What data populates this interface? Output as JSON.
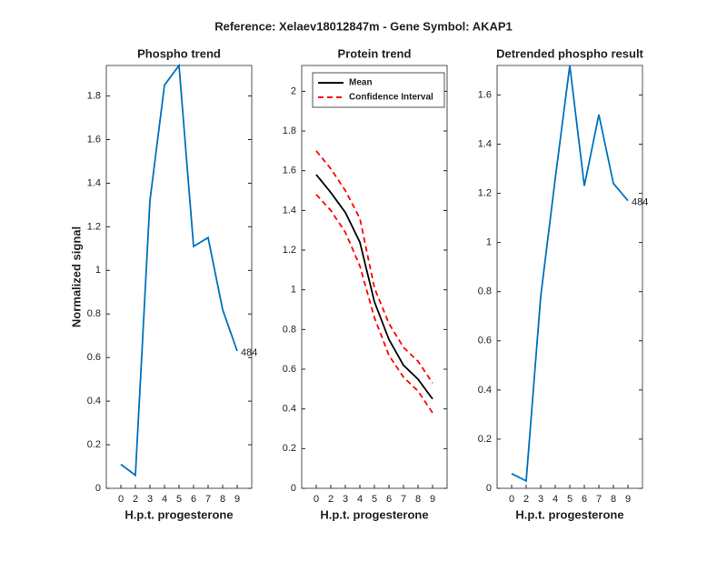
{
  "title": "Reference:  Xelaev18012847m - Gene Symbol:  AKAP1",
  "chart_data": [
    {
      "type": "line",
      "title": "Phospho trend",
      "x_label": "H.p.t. progesterone",
      "y_label": "Normalized signal",
      "categories": [
        "0",
        "2",
        "3",
        "4",
        "5",
        "6",
        "7",
        "8",
        "9"
      ],
      "series": [
        {
          "color": "#0072bd",
          "values": [
            0.11,
            0.06,
            1.32,
            1.85,
            1.94,
            1.11,
            1.15,
            0.82,
            0.63
          ]
        }
      ],
      "annotation": "484",
      "ylim": [
        0,
        1.94
      ],
      "yticks": [
        0,
        0.2,
        0.4,
        0.6,
        0.8,
        1,
        1.2,
        1.4,
        1.6,
        1.8
      ]
    },
    {
      "type": "line",
      "title": "Protein trend",
      "x_label": "H.p.t. progesterone",
      "categories": [
        "0",
        "2",
        "3",
        "4",
        "5",
        "6",
        "7",
        "8",
        "9"
      ],
      "series": [
        {
          "name": "Mean",
          "color": "#000000",
          "values": [
            1.58,
            1.49,
            1.39,
            1.24,
            0.94,
            0.75,
            0.62,
            0.55,
            0.45
          ]
        },
        {
          "name": "Confidence Interval",
          "color": "#ff0000",
          "dashed": true,
          "values": [
            1.7,
            1.61,
            1.5,
            1.36,
            1.01,
            0.83,
            0.71,
            0.64,
            0.53
          ],
          "lower": [
            1.48,
            1.4,
            1.29,
            1.12,
            0.86,
            0.67,
            0.56,
            0.49,
            0.38
          ]
        }
      ],
      "legend": "upper-left",
      "ylim": [
        0,
        2.13
      ],
      "yticks": [
        0,
        0.2,
        0.4,
        0.6,
        0.8,
        1,
        1.2,
        1.4,
        1.6,
        1.8,
        2
      ]
    },
    {
      "type": "line",
      "title": "Detrended phospho result",
      "x_label": "H.p.t. progesterone",
      "categories": [
        "0",
        "2",
        "3",
        "4",
        "5",
        "6",
        "7",
        "8",
        "9"
      ],
      "series": [
        {
          "color": "#0072bd",
          "values": [
            0.06,
            0.03,
            0.78,
            1.26,
            1.72,
            1.23,
            1.52,
            1.24,
            1.17
          ]
        }
      ],
      "annotation": "484",
      "ylim": [
        0,
        1.72
      ],
      "yticks": [
        0,
        0.2,
        0.4,
        0.6,
        0.8,
        1,
        1.2,
        1.4,
        1.6
      ]
    }
  ]
}
